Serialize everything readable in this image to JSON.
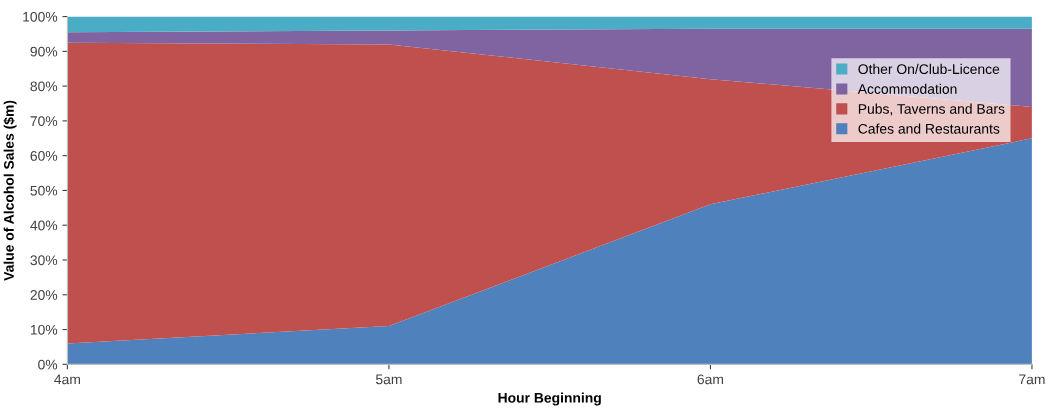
{
  "chart_data": {
    "type": "area",
    "stacked": true,
    "xlabel": "Hour Beginning",
    "ylabel": "Value of Alcohol Sales ($m)",
    "categories": [
      "4am",
      "5am",
      "6am",
      "7am"
    ],
    "series": [
      {
        "name": "Cafes and Restaurants",
        "color": "#4f81bd",
        "values": [
          6,
          11,
          46,
          65
        ]
      },
      {
        "name": "Pubs, Taverns and Bars",
        "color": "#c0504d",
        "values": [
          86.5,
          81,
          36,
          9
        ]
      },
      {
        "name": "Accommodation",
        "color": "#8064a2",
        "values": [
          3,
          4,
          14.5,
          22.5
        ]
      },
      {
        "name": "Other On/Club-Licence",
        "color": "#4bacc6",
        "values": [
          4.5,
          4,
          3.5,
          3.5
        ]
      }
    ],
    "ylim": [
      0,
      100
    ],
    "yticks": [
      {
        "value": 0,
        "label": "0%"
      },
      {
        "value": 10,
        "label": "10%"
      },
      {
        "value": 20,
        "label": "20%"
      },
      {
        "value": 30,
        "label": "30%"
      },
      {
        "value": 40,
        "label": "40%"
      },
      {
        "value": 50,
        "label": "50%"
      },
      {
        "value": 60,
        "label": "60%"
      },
      {
        "value": 70,
        "label": "70%"
      },
      {
        "value": 80,
        "label": "80%"
      },
      {
        "value": 90,
        "label": "90%"
      },
      {
        "value": 100,
        "label": "100%"
      }
    ],
    "grid": false,
    "legend": "top right"
  }
}
